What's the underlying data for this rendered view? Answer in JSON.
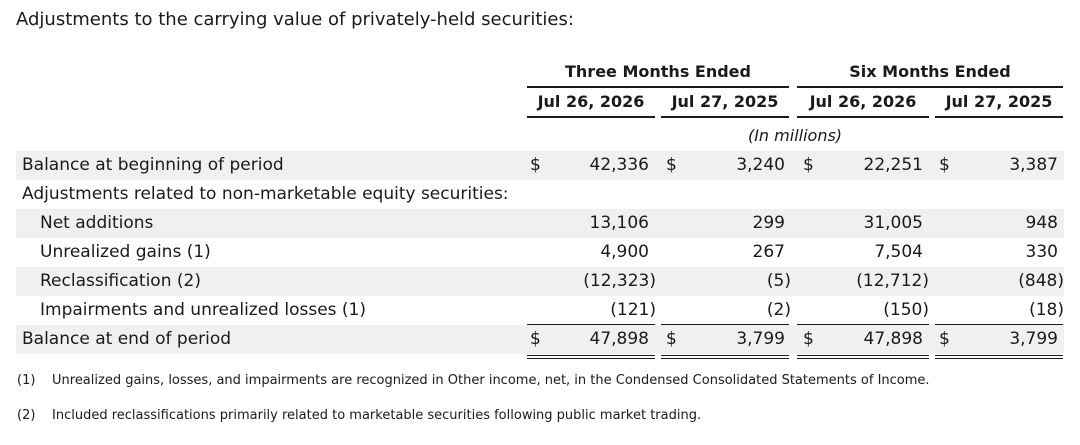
{
  "title": "Adjustments to the carrying value of privately-held securities:",
  "headers": {
    "group1": "Three Months Ended",
    "group2": "Six Months Ended",
    "col1": "Jul 26, 2026",
    "col2": "Jul 27, 2025",
    "col3": "Jul 26, 2026",
    "col4": "Jul 27, 2025",
    "units": "(In millions)"
  },
  "rows": [
    {
      "label": "Balance at beginning of period",
      "values": [
        "42,336",
        "3,240",
        "22,251",
        "3,387"
      ],
      "dollar": "$"
    },
    {
      "label": "Adjustments related to non-marketable equity securities:",
      "values": [
        "",
        "",
        "",
        ""
      ],
      "dollar": ""
    },
    {
      "label": "Net additions",
      "values": [
        "13,106",
        "299",
        "31,005",
        "948"
      ],
      "dollar": ""
    },
    {
      "label": "Unrealized gains (1)",
      "values": [
        "4,900",
        "267",
        "7,504",
        "330"
      ],
      "dollar": ""
    },
    {
      "label": "Reclassification (2)",
      "values": [
        "(12,323)",
        "(5)",
        "(12,712)",
        "(848)"
      ],
      "dollar": ""
    },
    {
      "label": "Impairments and unrealized losses (1)",
      "values": [
        "(121)",
        "(2)",
        "(150)",
        "(18)"
      ],
      "dollar": ""
    },
    {
      "label": "Balance at end of period",
      "values": [
        "47,898",
        "3,799",
        "47,898",
        "3,799"
      ],
      "dollar": "$"
    }
  ],
  "footnotes": [
    {
      "mark": "(1)",
      "text": "Unrealized gains, losses, and impairments are recognized in Other income, net, in the Condensed Consolidated Statements of Income."
    },
    {
      "mark": "(2)",
      "text": "Included reclassifications primarily related to marketable securities following public market trading."
    }
  ]
}
